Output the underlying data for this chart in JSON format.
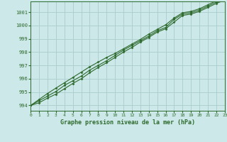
{
  "xlabel": "Graphe pression niveau de la mer (hPa)",
  "xlim": [
    0,
    23
  ],
  "ylim": [
    993.6,
    1001.8
  ],
  "yticks": [
    994,
    995,
    996,
    997,
    998,
    999,
    1000,
    1001
  ],
  "xticks": [
    0,
    1,
    2,
    3,
    4,
    5,
    6,
    7,
    8,
    9,
    10,
    11,
    12,
    13,
    14,
    15,
    16,
    17,
    18,
    19,
    20,
    21,
    22,
    23
  ],
  "background_color": "#cce8e8",
  "grid_color": "#aacccc",
  "line_color": "#2d6a2d",
  "marker_color": "#2d6a2d",
  "series": [
    [
      994.0,
      994.35,
      994.7,
      995.05,
      995.5,
      995.85,
      996.2,
      996.65,
      997.0,
      997.35,
      997.75,
      998.15,
      998.5,
      998.85,
      999.2,
      999.6,
      999.85,
      1000.45,
      1000.85,
      1000.95,
      1001.15,
      1001.45,
      1001.75,
      1002.0
    ],
    [
      994.0,
      994.45,
      994.9,
      995.3,
      995.7,
      996.1,
      996.5,
      996.9,
      997.25,
      997.6,
      997.9,
      998.25,
      998.6,
      998.95,
      999.35,
      999.7,
      1000.05,
      1000.55,
      1000.95,
      1001.05,
      1001.25,
      1001.55,
      1001.85,
      1002.1
    ],
    [
      994.0,
      994.2,
      994.55,
      994.85,
      995.25,
      995.65,
      996.0,
      996.45,
      996.85,
      997.2,
      997.6,
      998.0,
      998.35,
      998.75,
      999.1,
      999.5,
      999.75,
      1000.25,
      1000.75,
      1000.85,
      1001.05,
      1001.35,
      1001.65,
      1001.9
    ]
  ]
}
